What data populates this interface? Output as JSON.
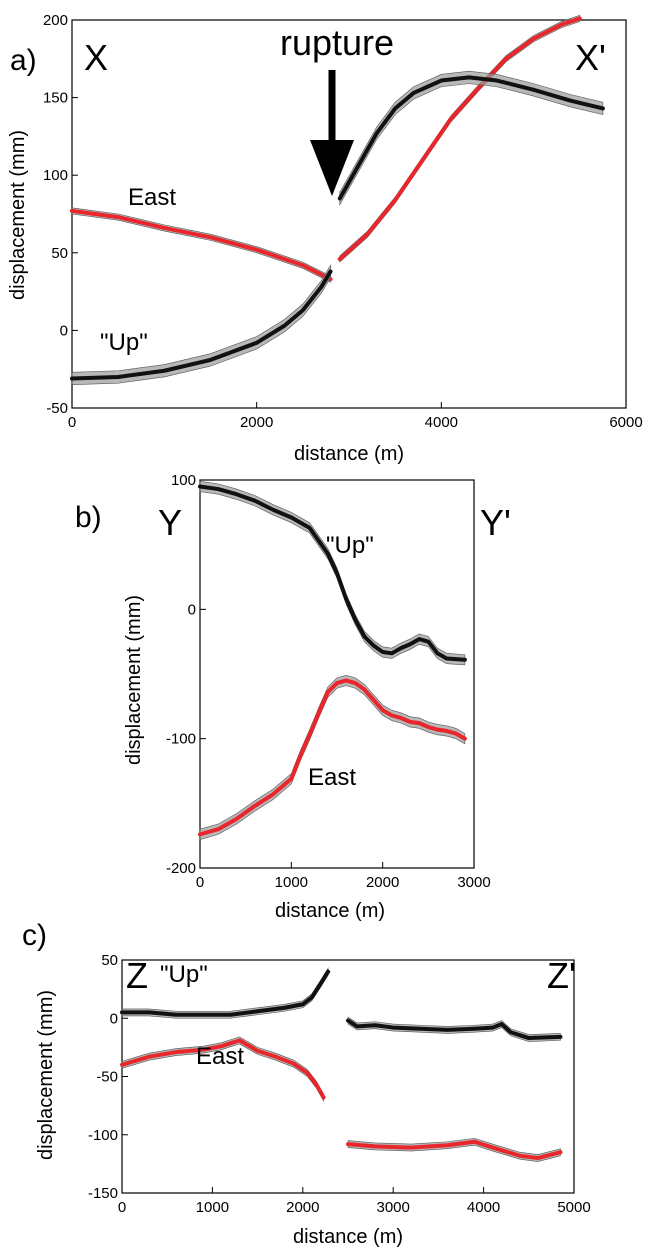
{
  "chart_data": [
    {
      "type": "line",
      "panel_label": "a)",
      "start_label": "X",
      "end_label": "X'",
      "annotation": "rupture",
      "xlabel": "distance (m)",
      "ylabel": "displacement (mm)",
      "xlim": [
        0,
        6000
      ],
      "ylim": [
        -50,
        200
      ],
      "xticks": [
        0,
        2000,
        4000,
        6000
      ],
      "yticks": [
        -50,
        0,
        50,
        100,
        150,
        200
      ],
      "series": [
        {
          "name": "East",
          "color": "#e8262b",
          "band": 2,
          "segments": [
            [
              [
                0,
                77
              ],
              [
                500,
                73
              ],
              [
                1000,
                66
              ],
              [
                1500,
                60
              ],
              [
                2000,
                52
              ],
              [
                2500,
                42
              ],
              [
                2800,
                33
              ]
            ],
            [
              [
                2900,
                46
              ],
              [
                3200,
                62
              ],
              [
                3500,
                84
              ],
              [
                3800,
                110
              ],
              [
                4100,
                136
              ],
              [
                4400,
                156
              ],
              [
                4700,
                175
              ],
              [
                5000,
                188
              ],
              [
                5300,
                197
              ],
              [
                5500,
                201
              ]
            ]
          ]
        },
        {
          "name": "\"Up\"",
          "color": "#111111",
          "band": 4,
          "segments": [
            [
              [
                0,
                -31
              ],
              [
                500,
                -30
              ],
              [
                1000,
                -26
              ],
              [
                1500,
                -19
              ],
              [
                2000,
                -8
              ],
              [
                2300,
                3
              ],
              [
                2500,
                13
              ],
              [
                2700,
                28
              ],
              [
                2800,
                38
              ]
            ],
            [
              [
                2900,
                85
              ],
              [
                3100,
                106
              ],
              [
                3300,
                127
              ],
              [
                3500,
                143
              ],
              [
                3700,
                153
              ],
              [
                4000,
                161
              ],
              [
                4300,
                163
              ],
              [
                4600,
                161
              ],
              [
                5000,
                155
              ],
              [
                5400,
                148
              ],
              [
                5750,
                143
              ]
            ]
          ]
        }
      ]
    },
    {
      "type": "line",
      "panel_label": "b)",
      "start_label": "Y",
      "end_label": "Y'",
      "xlabel": "distance (m)",
      "ylabel": "displacement (mm)",
      "xlim": [
        0,
        3000
      ],
      "ylim": [
        -200,
        100
      ],
      "xticks": [
        0,
        1000,
        2000,
        3000
      ],
      "yticks": [
        -200,
        -100,
        0,
        100
      ],
      "series": [
        {
          "name": "\"Up\"",
          "color": "#111111",
          "band": 4,
          "segments": [
            [
              [
                0,
                95
              ],
              [
                200,
                93
              ],
              [
                400,
                89
              ],
              [
                600,
                84
              ],
              [
                800,
                77
              ],
              [
                1000,
                71
              ],
              [
                1200,
                63
              ],
              [
                1400,
                43
              ],
              [
                1500,
                28
              ],
              [
                1600,
                8
              ],
              [
                1700,
                -8
              ],
              [
                1800,
                -21
              ],
              [
                1900,
                -28
              ],
              [
                2000,
                -33
              ],
              [
                2100,
                -34
              ],
              [
                2200,
                -30
              ],
              [
                2300,
                -27
              ],
              [
                2400,
                -23
              ],
              [
                2500,
                -25
              ],
              [
                2600,
                -34
              ],
              [
                2700,
                -38
              ],
              [
                2900,
                -39
              ]
            ]
          ]
        },
        {
          "name": "East",
          "color": "#e8262b",
          "band": 4,
          "segments": [
            [
              [
                0,
                -174
              ],
              [
                200,
                -170
              ],
              [
                400,
                -162
              ],
              [
                600,
                -152
              ],
              [
                800,
                -143
              ],
              [
                1000,
                -131
              ],
              [
                1100,
                -113
              ],
              [
                1200,
                -97
              ],
              [
                1300,
                -80
              ],
              [
                1400,
                -64
              ],
              [
                1500,
                -57
              ],
              [
                1600,
                -55
              ],
              [
                1700,
                -57
              ],
              [
                1800,
                -62
              ],
              [
                1900,
                -70
              ],
              [
                2000,
                -78
              ],
              [
                2100,
                -82
              ],
              [
                2200,
                -84
              ],
              [
                2300,
                -87
              ],
              [
                2400,
                -88
              ],
              [
                2500,
                -91
              ],
              [
                2600,
                -93
              ],
              [
                2700,
                -94
              ],
              [
                2800,
                -96
              ],
              [
                2900,
                -100
              ]
            ]
          ]
        }
      ]
    },
    {
      "type": "line",
      "panel_label": "c)",
      "start_label": "Z",
      "end_label": "Z'",
      "xlabel": "distance (m)",
      "ylabel": "displacement (mm)",
      "xlim": [
        0,
        5000
      ],
      "ylim": [
        -150,
        50
      ],
      "xticks": [
        0,
        1000,
        2000,
        3000,
        4000,
        5000
      ],
      "yticks": [
        -150,
        -100,
        -50,
        0,
        50
      ],
      "series": [
        {
          "name": "\"Up\"",
          "color": "#111111",
          "band": 3,
          "segments": [
            [
              [
                0,
                5
              ],
              [
                300,
                5
              ],
              [
                600,
                3
              ],
              [
                900,
                3
              ],
              [
                1200,
                3
              ],
              [
                1500,
                6
              ],
              [
                1800,
                9
              ],
              [
                2000,
                12
              ],
              [
                2100,
                18
              ],
              [
                2200,
                30
              ],
              [
                2280,
                40
              ]
            ],
            [
              [
                2500,
                -2
              ],
              [
                2600,
                -7
              ],
              [
                2800,
                -6
              ],
              [
                3000,
                -8
              ],
              [
                3300,
                -9
              ],
              [
                3600,
                -10
              ],
              [
                3900,
                -9
              ],
              [
                4100,
                -8
              ],
              [
                4200,
                -5
              ],
              [
                4300,
                -12
              ],
              [
                4500,
                -17
              ],
              [
                4850,
                -16
              ]
            ]
          ]
        },
        {
          "name": "East",
          "color": "#e8262b",
          "band": 3,
          "segments": [
            [
              [
                0,
                -40
              ],
              [
                300,
                -33
              ],
              [
                600,
                -29
              ],
              [
                900,
                -27
              ],
              [
                1100,
                -24
              ],
              [
                1300,
                -19
              ],
              [
                1500,
                -28
              ],
              [
                1700,
                -33
              ],
              [
                1900,
                -39
              ],
              [
                2050,
                -47
              ],
              [
                2150,
                -57
              ],
              [
                2230,
                -68
              ]
            ],
            [
              [
                2500,
                -108
              ],
              [
                2800,
                -110
              ],
              [
                3200,
                -111
              ],
              [
                3600,
                -109
              ],
              [
                3900,
                -106
              ],
              [
                4100,
                -111
              ],
              [
                4400,
                -118
              ],
              [
                4600,
                -120
              ],
              [
                4850,
                -115
              ]
            ]
          ]
        }
      ]
    }
  ],
  "panels": [
    {
      "id": "a",
      "series_labels": [
        {
          "text": "East",
          "series": 0
        },
        {
          "text": "\"Up\"",
          "series": 1
        }
      ]
    },
    {
      "id": "b",
      "series_labels": [
        {
          "text": "\"Up\"",
          "series": 0
        },
        {
          "text": "East",
          "series": 1
        }
      ]
    },
    {
      "id": "c",
      "series_labels": [
        {
          "text": "\"Up\"",
          "series": 0
        },
        {
          "text": "East",
          "series": 1
        }
      ]
    }
  ]
}
